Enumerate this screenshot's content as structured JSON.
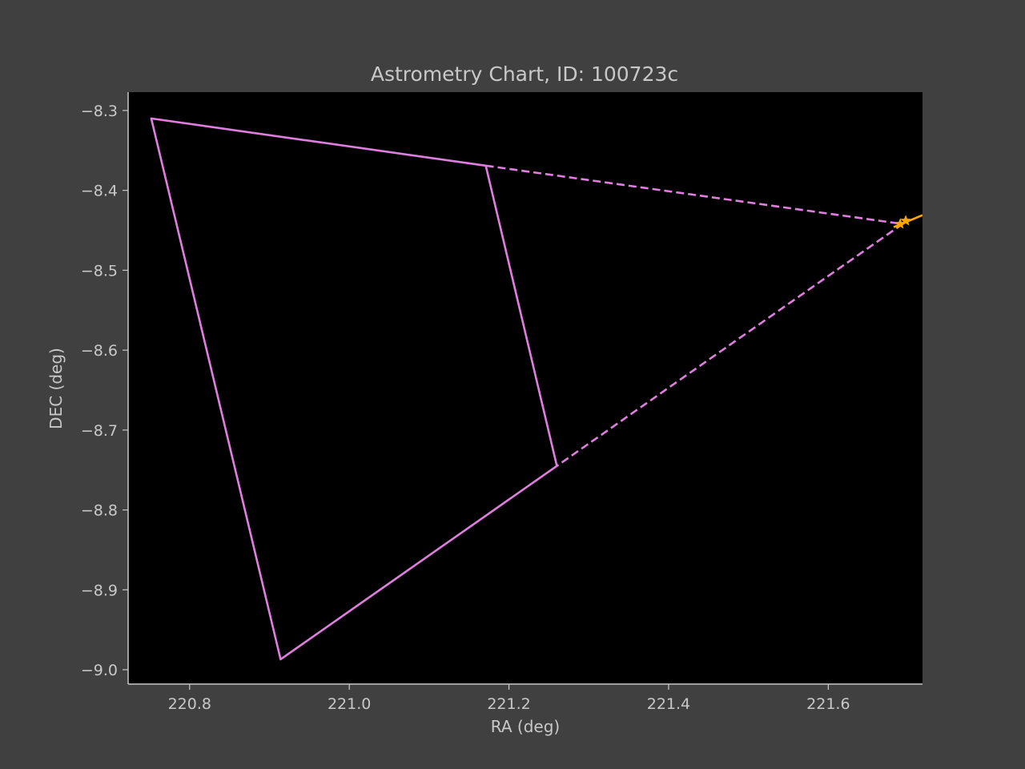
{
  "chart_data": {
    "type": "line",
    "title": "Astrometry Chart, ID: 100723c",
    "xlabel": "RA (deg)",
    "ylabel": "DEC (deg)",
    "xlim": [
      220.723,
      221.718
    ],
    "ylim": [
      -9.018,
      -8.277
    ],
    "xticks": [
      220.8,
      221.0,
      221.2,
      221.4,
      221.6
    ],
    "xtick_labels": [
      "220.8",
      "221.0",
      "221.2",
      "221.4",
      "221.6"
    ],
    "yticks": [
      -8.3,
      -8.4,
      -8.5,
      -8.6,
      -8.7,
      -8.8,
      -8.9,
      -9.0
    ],
    "ytick_labels": [
      "−8.3",
      "−8.4",
      "−8.5",
      "−8.6",
      "−8.7",
      "−8.8",
      "−8.9",
      "−9.0"
    ],
    "grid": false,
    "background": "#000000",
    "series": [
      {
        "style": "solid",
        "color": "#e07ee0",
        "points": [
          [
            221.171,
            -8.369
          ],
          [
            220.752,
            -8.31
          ],
          [
            220.914,
            -8.987
          ],
          [
            221.26,
            -8.745
          ],
          [
            221.171,
            -8.369
          ]
        ]
      },
      {
        "style": "dashed",
        "color": "#e07ee0",
        "points": [
          [
            221.171,
            -8.369
          ],
          [
            221.693,
            -8.442
          ],
          [
            221.26,
            -8.745
          ]
        ]
      },
      {
        "style": "solid",
        "color": "#ffa500",
        "points": [
          [
            221.682,
            -8.446
          ],
          [
            221.718,
            -8.431
          ]
        ]
      },
      {
        "style": "marker",
        "color": "#ffa500",
        "points": [
          [
            221.69,
            -8.442
          ],
          [
            221.697,
            -8.438
          ]
        ]
      }
    ]
  }
}
